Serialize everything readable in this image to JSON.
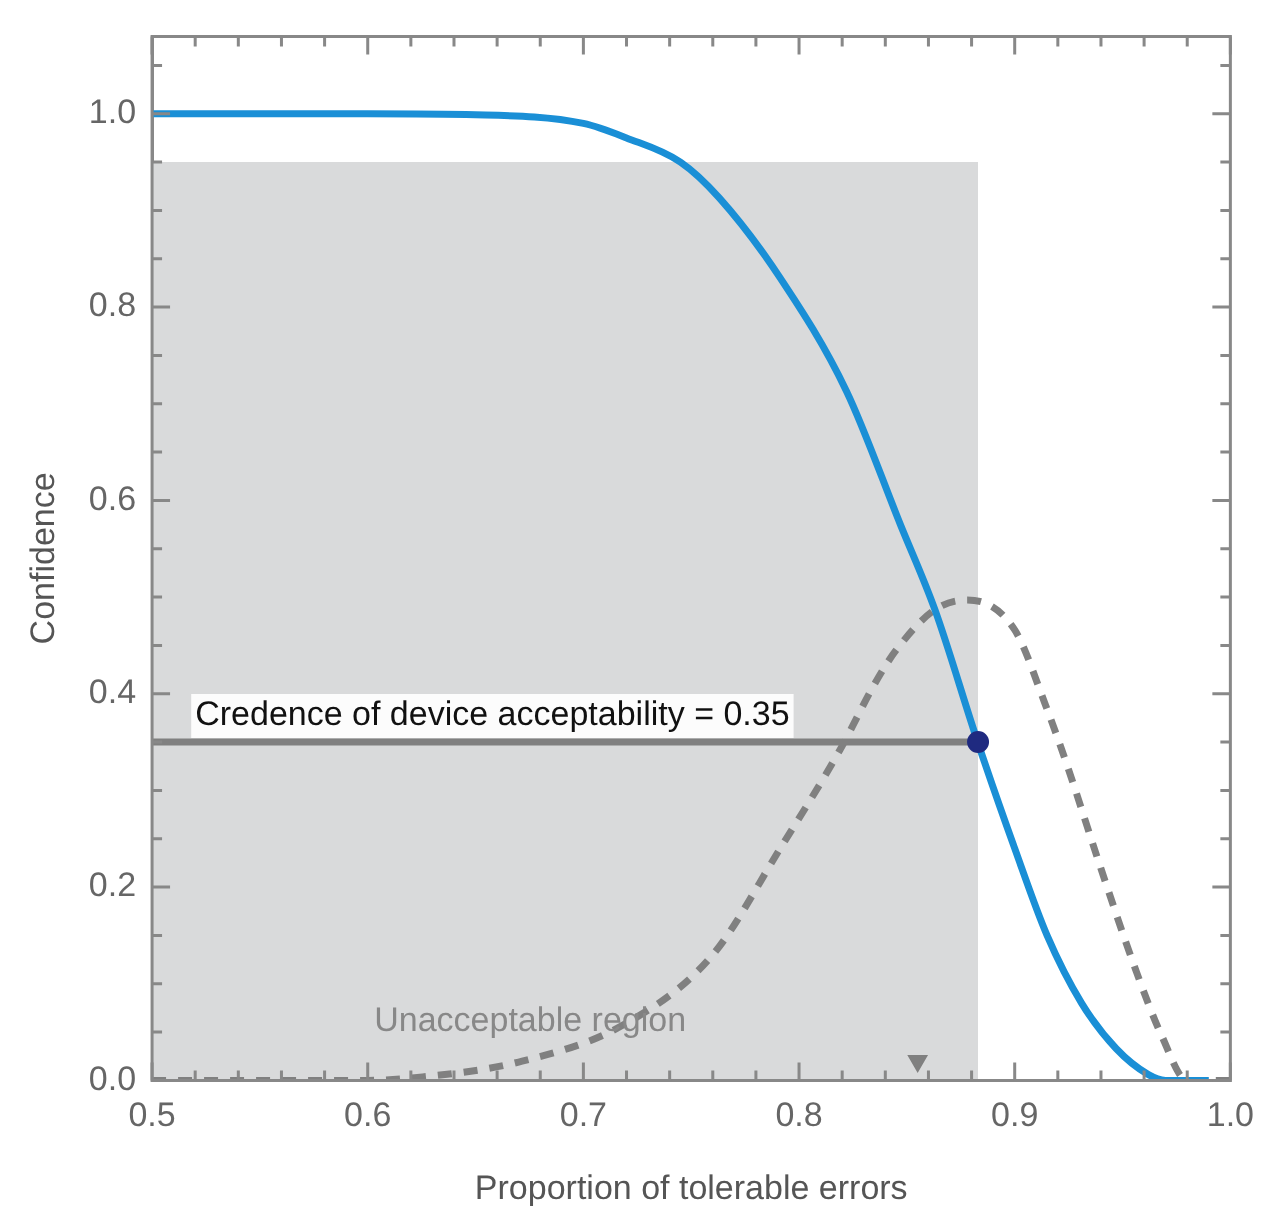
{
  "chart_data": {
    "type": "line",
    "xlabel": "Proportion of tolerable errors",
    "ylabel": "Confidence",
    "xlim": [
      0.5,
      1.0
    ],
    "ylim": [
      0,
      1.08
    ],
    "xticks": [
      0.5,
      {
        "value": 0.52,
        "label": null
      },
      {
        "value": 0.54,
        "label": null
      },
      {
        "value": 0.56,
        "label": null
      },
      {
        "value": 0.58,
        "label": null
      },
      0.6,
      {
        "value": 0.62,
        "label": null
      },
      {
        "value": 0.64,
        "label": null
      },
      {
        "value": 0.66,
        "label": null
      },
      {
        "value": 0.68,
        "label": null
      },
      0.7,
      {
        "value": 0.72,
        "label": null
      },
      {
        "value": 0.74,
        "label": null
      },
      {
        "value": 0.76,
        "label": null
      },
      {
        "value": 0.78,
        "label": null
      },
      0.8,
      {
        "value": 0.82,
        "label": null
      },
      {
        "value": 0.84,
        "label": null
      },
      {
        "value": 0.86,
        "label": null
      },
      {
        "value": 0.88,
        "label": null
      },
      0.9,
      {
        "value": 0.92,
        "label": null
      },
      {
        "value": 0.94,
        "label": null
      },
      {
        "value": 0.96,
        "label": null
      },
      {
        "value": 0.98,
        "label": null
      },
      {
        "value": 1.0,
        "label": "1.0"
      }
    ],
    "yticks": [
      {
        "value": 0,
        "label": "0.0"
      },
      {
        "value": 0.05,
        "label": null
      },
      {
        "value": 0.1,
        "label": null
      },
      {
        "value": 0.15,
        "label": null
      },
      0.2,
      {
        "value": 0.25,
        "label": null
      },
      {
        "value": 0.3,
        "label": null
      },
      {
        "value": 0.35,
        "label": null
      },
      0.4,
      {
        "value": 0.45,
        "label": null
      },
      {
        "value": 0.5,
        "label": null
      },
      {
        "value": 0.55,
        "label": null
      },
      0.6,
      {
        "value": 0.65,
        "label": null
      },
      {
        "value": 0.7,
        "label": null
      },
      {
        "value": 0.75,
        "label": null
      },
      0.8,
      {
        "value": 0.85,
        "label": null
      },
      {
        "value": 0.9,
        "label": null
      },
      {
        "value": 0.95,
        "label": null
      },
      {
        "value": 1.0,
        "label": "1.0"
      },
      {
        "value": 1.05,
        "label": null
      }
    ],
    "grid": false,
    "legend": false,
    "series": [
      {
        "type": "area",
        "color": "#d9dadb",
        "x": [
          0.5,
          0.883
        ],
        "values": [
          0.95,
          0.95
        ],
        "marker": "none"
      },
      {
        "type": "line",
        "color": "#808080",
        "x": [
          0.5,
          0.883
        ],
        "values": [
          0.35,
          0.35
        ],
        "marker": "none",
        "line_style": "solid"
      },
      {
        "type": "line",
        "color": "#808080",
        "line_style": "dashed",
        "marker": "none",
        "x": [
          0.5,
          0.6,
          0.623,
          0.67,
          0.719,
          0.76,
          0.791,
          0.819,
          0.835,
          0.845,
          0.863,
          0.878,
          0.9,
          0.914,
          0.924,
          0.94,
          0.956,
          0.968,
          0.98,
          1.0
        ],
        "values": [
          0,
          0,
          0.003,
          0.019,
          0.058,
          0.13,
          0.239,
          0.342,
          0.41,
          0.445,
          0.487,
          0.497,
          0.466,
          0.39,
          0.328,
          0.219,
          0.115,
          0.047,
          0,
          0
        ]
      },
      {
        "type": "line",
        "color": "#1a8fd6",
        "line_style": "solid",
        "marker": "none",
        "x": [
          0.5,
          0.6,
          0.65,
          0.7,
          0.72,
          0.745,
          0.763,
          0.791,
          0.822,
          0.847,
          0.863,
          0.883,
          0.9,
          0.915,
          0.931,
          0.947,
          0.962,
          0.97,
          0.99
        ],
        "values": [
          1,
          1,
          0.999,
          0.99,
          0.975,
          0.95,
          0.913,
          0.831,
          0.713,
          0.575,
          0.487,
          0.349,
          0.24,
          0.15,
          0.08,
          0.033,
          0.006,
          0,
          0
        ]
      },
      {
        "type": "scatter",
        "color": "#1f2a80",
        "marker": "circle",
        "x": [
          0.883
        ],
        "values": [
          0.35
        ]
      },
      {
        "type": "scatter",
        "color": "#808080",
        "marker": "triangle",
        "x": [
          0.855
        ],
        "values": [
          0.02
        ]
      }
    ],
    "annotations": [
      "Credence of device acceptability = 0.35",
      "Unacceptable region"
    ]
  }
}
